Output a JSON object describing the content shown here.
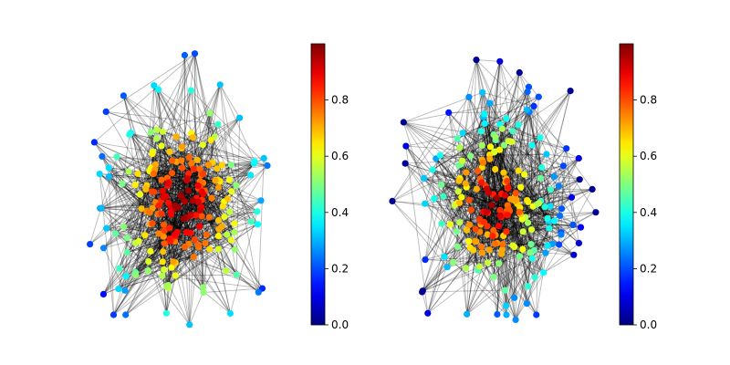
{
  "figure": {
    "panels": [
      {
        "name": "left-network",
        "seed": 11,
        "color_mode": "core"
      },
      {
        "name": "right-network",
        "seed": 29,
        "color_mode": "ring"
      }
    ],
    "colorbar": {
      "colormap": "jet",
      "range": [
        0,
        1
      ],
      "ticks": [
        "0.0",
        "0.2",
        "0.4",
        "0.6",
        "0.8"
      ]
    },
    "colors": {
      "edge": "#000000",
      "background": "#ffffff"
    }
  }
}
